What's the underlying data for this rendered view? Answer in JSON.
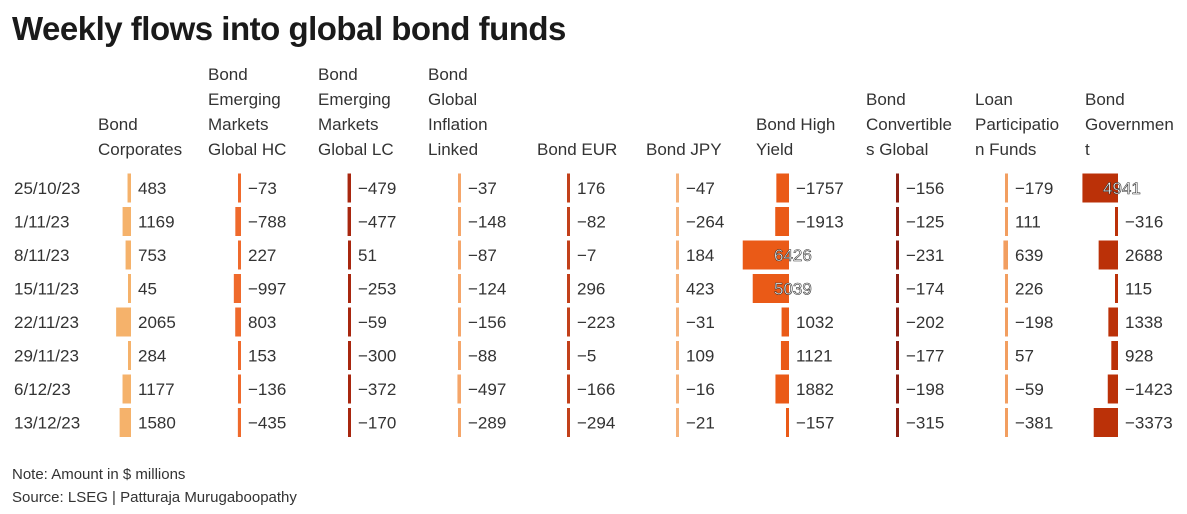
{
  "title": "Weekly flows into global bond funds",
  "note": "Note: Amount in $ millions",
  "source": "Source: LSEG | Patturaja Murugaboopathy",
  "chart_data": {
    "type": "table",
    "title": "Weekly flows into global bond funds",
    "columns": [
      {
        "lines": [
          "Bond",
          "Corporates"
        ],
        "values": [
          483,
          1169,
          753,
          45,
          2065,
          284,
          1177,
          1580
        ],
        "color": "#f5b26b"
      },
      {
        "lines": [
          "Bond",
          "Emerging",
          "Markets",
          "Global HC"
        ],
        "values": [
          -73,
          -788,
          227,
          -997,
          803,
          153,
          -136,
          -435
        ],
        "color": "#ef6a2c"
      },
      {
        "lines": [
          "Bond",
          "Emerging",
          "Markets",
          "Global LC"
        ],
        "values": [
          -479,
          -477,
          51,
          -253,
          -59,
          -300,
          -372,
          -170
        ],
        "color": "#a8270f"
      },
      {
        "lines": [
          "Bond",
          "Global",
          "Inflation",
          "Linked"
        ],
        "values": [
          -37,
          -148,
          -87,
          -124,
          -156,
          -88,
          -497,
          -289
        ],
        "color": "#f5a66a"
      },
      {
        "lines": [
          "Bond EUR"
        ],
        "values": [
          176,
          -82,
          -7,
          296,
          -223,
          -5,
          -166,
          -294
        ],
        "color": "#c2401a"
      },
      {
        "lines": [
          "Bond JPY"
        ],
        "values": [
          -47,
          -264,
          184,
          423,
          -31,
          109,
          -16,
          -21
        ],
        "color": "#f5b27a"
      },
      {
        "lines": [
          "Bond High",
          "Yield"
        ],
        "values": [
          -1757,
          -1913,
          6426,
          5039,
          1032,
          1121,
          1882,
          -157
        ],
        "color": "#ea5a17"
      },
      {
        "lines": [
          "Bond",
          "Convertible",
          "s Global"
        ],
        "values": [
          -156,
          -125,
          -231,
          -174,
          -202,
          -177,
          -198,
          -315
        ],
        "color": "#8a1e12"
      },
      {
        "lines": [
          "Loan",
          "Participatio",
          "n Funds"
        ],
        "values": [
          -179,
          111,
          639,
          226,
          -198,
          57,
          -59,
          -381
        ],
        "color": "#f29e60"
      },
      {
        "lines": [
          "Bond",
          "Governmen",
          "t"
        ],
        "values": [
          4941,
          -316,
          2688,
          115,
          1338,
          928,
          -1423,
          -3373
        ],
        "color": "#bb3108"
      }
    ],
    "rows": [
      "25/10/23",
      "1/11/23",
      "8/11/23",
      "15/11/23",
      "22/11/23",
      "29/11/23",
      "6/12/23",
      "13/12/23"
    ]
  }
}
